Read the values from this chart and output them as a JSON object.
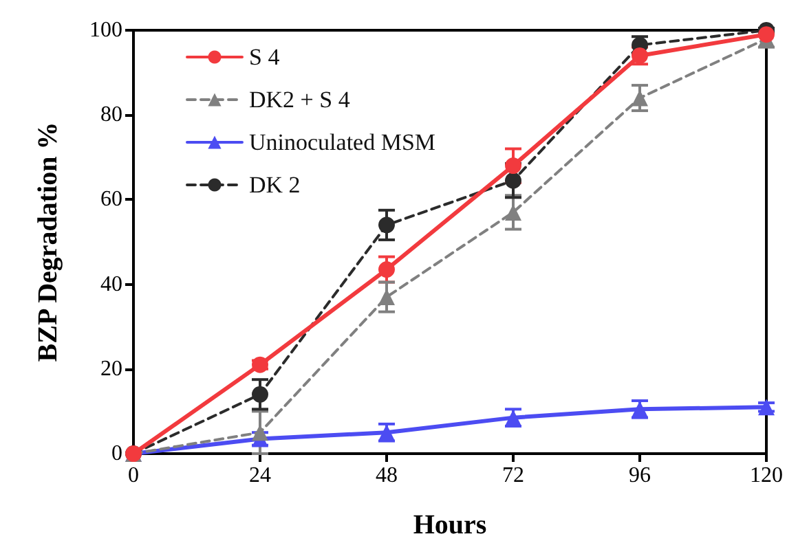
{
  "chart_data": {
    "type": "line",
    "xlabel": "Hours",
    "ylabel": "BZP Degradation %",
    "x": [
      0,
      24,
      48,
      72,
      96,
      120
    ],
    "xlim": [
      0,
      120
    ],
    "xticks": [
      0,
      24,
      48,
      72,
      96,
      120
    ],
    "ylim": [
      0,
      100
    ],
    "yticks": [
      0,
      20,
      40,
      60,
      80,
      100
    ],
    "grid": false,
    "legend": "top left",
    "series": [
      {
        "name": "S 4",
        "color": "#f23a3e",
        "marker": "circle",
        "line_style": "solid",
        "values": [
          0,
          21,
          43.5,
          68,
          94,
          99
        ],
        "errors": [
          null,
          1,
          3,
          4,
          2,
          null
        ]
      },
      {
        "name": "DK2 + S 4",
        "color": "#808080",
        "marker": "triangle",
        "line_style": "dashed",
        "values": [
          0,
          5,
          37,
          57,
          84,
          98
        ],
        "errors": [
          null,
          5,
          3.5,
          4,
          3,
          2
        ]
      },
      {
        "name": "Uninoculated MSM",
        "color": "#4c4cf2",
        "marker": "triangle",
        "line_style": "solid",
        "values": [
          0,
          3.5,
          5,
          8.5,
          10.5,
          11
        ],
        "errors": [
          null,
          1.5,
          2,
          2,
          2,
          1
        ]
      },
      {
        "name": "DK 2",
        "color": "#2b2b2b",
        "marker": "circle",
        "line_style": "dashed",
        "values": [
          0,
          14,
          54,
          64.5,
          96.5,
          100
        ],
        "errors": [
          null,
          3.5,
          3.5,
          4,
          2,
          0.5
        ]
      }
    ]
  }
}
